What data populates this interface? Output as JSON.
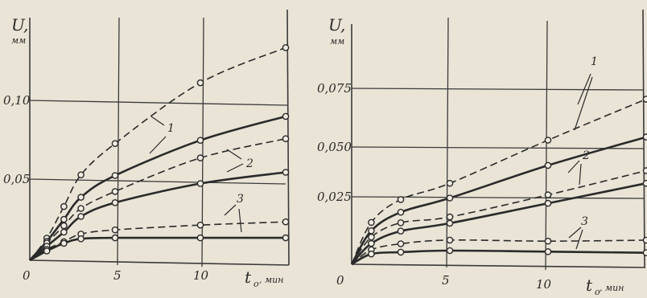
{
  "chart_data": [
    {
      "type": "line",
      "ylabel": "U,",
      "yunit": "мм",
      "xlabel": "t",
      "xsub": "o",
      "xunit": ", мин",
      "xlim": [
        0,
        15
      ],
      "ylim": [
        0,
        0.14
      ],
      "x_ticks": [
        "0",
        "5",
        "10"
      ],
      "y_ticks": [
        "0,05",
        "0,10"
      ],
      "grid": true,
      "series": [
        {
          "name": "1",
          "style": "dashed",
          "x": [
            0,
            1,
            2,
            3,
            5,
            10,
            15
          ],
          "y": [
            0,
            0.014,
            0.034,
            0.054,
            0.074,
            0.113,
            0.136
          ]
        },
        {
          "name": "1",
          "style": "solid",
          "x": [
            0,
            1,
            2,
            3,
            5,
            10,
            15
          ],
          "y": [
            0,
            0.012,
            0.026,
            0.04,
            0.054,
            0.077,
            0.093
          ]
        },
        {
          "name": "2",
          "style": "dashed",
          "x": [
            0,
            1,
            2,
            3,
            5,
            10,
            15
          ],
          "y": [
            0,
            0.011,
            0.022,
            0.033,
            0.044,
            0.066,
            0.079
          ]
        },
        {
          "name": "2",
          "style": "solid",
          "x": [
            0,
            1,
            2,
            3,
            5,
            10,
            15
          ],
          "y": [
            0,
            0.009,
            0.018,
            0.028,
            0.037,
            0.05,
            0.058
          ]
        },
        {
          "name": "3",
          "style": "dashed",
          "x": [
            0,
            1,
            2,
            3,
            5,
            10,
            15
          ],
          "y": [
            0,
            0.007,
            0.012,
            0.017,
            0.02,
            0.024,
            0.027
          ]
        },
        {
          "name": "3",
          "style": "solid",
          "x": [
            0,
            1,
            2,
            3,
            5,
            10,
            15
          ],
          "y": [
            0,
            0.006,
            0.011,
            0.014,
            0.015,
            0.016,
            0.017
          ]
        }
      ]
    },
    {
      "type": "line",
      "ylabel": "U,",
      "yunit": "мм",
      "xlabel": "t",
      "xsub": "o",
      "xunit": ", мин",
      "xlim": [
        0,
        15
      ],
      "ylim": [
        0,
        0.09
      ],
      "x_ticks": [
        "0",
        "5",
        "10"
      ],
      "y_ticks": [
        "0,025",
        "0,050",
        "0,075"
      ],
      "grid": true,
      "series": [
        {
          "name": "1",
          "style": "dashed",
          "x": [
            0,
            1,
            2.5,
            5,
            10,
            15
          ],
          "y": [
            0,
            0.02,
            0.031,
            0.039,
            0.06,
            0.08
          ]
        },
        {
          "name": "1",
          "style": "solid",
          "x": [
            0,
            1,
            2.5,
            5,
            10,
            15
          ],
          "y": [
            0,
            0.016,
            0.025,
            0.032,
            0.048,
            0.062
          ]
        },
        {
          "name": "2",
          "style": "dashed",
          "x": [
            0,
            1,
            2.5,
            5,
            10,
            15
          ],
          "y": [
            0,
            0.013,
            0.02,
            0.023,
            0.034,
            0.046
          ]
        },
        {
          "name": "2",
          "style": "solid",
          "x": [
            0,
            1,
            2.5,
            5,
            10,
            15
          ],
          "y": [
            0,
            0.01,
            0.016,
            0.02,
            0.03,
            0.04
          ]
        },
        {
          "name": "3",
          "style": "dashed",
          "x": [
            0,
            1,
            2.5,
            5,
            10,
            15
          ],
          "y": [
            0,
            0.007,
            0.01,
            0.012,
            0.012,
            0.013
          ]
        },
        {
          "name": "3",
          "style": "solid",
          "x": [
            0,
            1,
            2.5,
            5,
            10,
            15
          ],
          "y": [
            0,
            0.005,
            0.006,
            0.007,
            0.007,
            0.007
          ]
        }
      ]
    }
  ]
}
